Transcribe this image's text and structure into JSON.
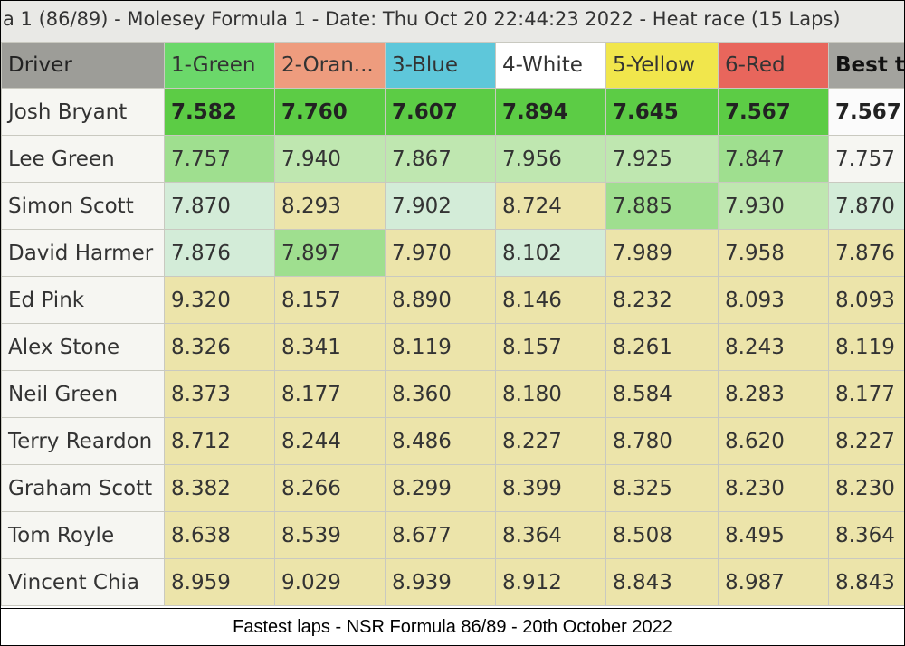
{
  "window_title": "a 1 (86/89) - Molesey Formula 1 - Date: Thu Oct 20 22:44:23 2022 - Heat race (15 Laps)",
  "table": {
    "header": [
      "Driver",
      "1-Green",
      "2-Oran...",
      "3-Blue",
      "4-White",
      "5-Yellow",
      "6-Red",
      "Best ti"
    ],
    "rows": [
      [
        "Josh Bryant",
        "7.582",
        "7.760",
        "7.607",
        "7.894",
        "7.645",
        "7.567",
        "7.567"
      ],
      [
        "Lee Green",
        "7.757",
        "7.940",
        "7.867",
        "7.956",
        "7.925",
        "7.847",
        "7.757"
      ],
      [
        "Simon Scott",
        "7.870",
        "8.293",
        "7.902",
        "8.724",
        "7.885",
        "7.930",
        "7.870"
      ],
      [
        "David Harmer",
        "7.876",
        "7.897",
        "7.970",
        "8.102",
        "7.989",
        "7.958",
        "7.876"
      ],
      [
        "Ed Pink",
        "9.320",
        "8.157",
        "8.890",
        "8.146",
        "8.232",
        "8.093",
        "8.093"
      ],
      [
        "Alex Stone",
        "8.326",
        "8.341",
        "8.119",
        "8.157",
        "8.261",
        "8.243",
        "8.119"
      ],
      [
        "Neil Green",
        "8.373",
        "8.177",
        "8.360",
        "8.180",
        "8.584",
        "8.283",
        "8.177"
      ],
      [
        "Terry Reardon",
        "8.712",
        "8.244",
        "8.486",
        "8.227",
        "8.780",
        "8.620",
        "8.227"
      ],
      [
        "Graham Scott",
        "8.382",
        "8.266",
        "8.299",
        "8.399",
        "8.325",
        "8.230",
        "8.230"
      ],
      [
        "Tom Royle",
        "8.638",
        "8.539",
        "8.677",
        "8.364",
        "8.508",
        "8.495",
        "8.364"
      ],
      [
        "Vincent Chia",
        "8.959",
        "9.029",
        "8.939",
        "8.912",
        "8.843",
        "8.987",
        "8.843"
      ]
    ]
  },
  "caption": "Fastest laps - NSR Formula 86/89 - 20th October 2022"
}
